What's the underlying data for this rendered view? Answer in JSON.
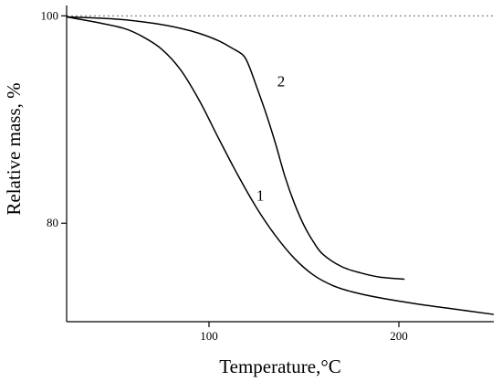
{
  "chart_data": {
    "type": "line",
    "title": "",
    "xlabel": "Temperature,°C",
    "ylabel": "Relative mass, %",
    "xlim": [
      25,
      250
    ],
    "ylim": [
      70.5,
      101
    ],
    "x_ticks": [
      100,
      200
    ],
    "x_tick_labels": [
      "100",
      "200"
    ],
    "y_ticks": [
      80,
      100
    ],
    "y_tick_labels": [
      "80",
      "100"
    ],
    "grid": false,
    "legend": "none",
    "reference_lines": [
      {
        "axis": "y",
        "value": 100,
        "style": "dotted"
      }
    ],
    "series": [
      {
        "name": "1",
        "color": "#000000",
        "x": [
          25,
          40,
          55,
          65,
          75,
          85,
          95,
          105,
          115,
          125,
          135,
          145,
          155,
          165,
          175,
          190,
          210,
          230,
          250
        ],
        "y": [
          99.9,
          99.4,
          98.8,
          98.0,
          96.8,
          94.8,
          91.8,
          88.2,
          84.7,
          81.5,
          78.8,
          76.6,
          75.0,
          74.0,
          73.4,
          72.8,
          72.2,
          71.7,
          71.2
        ]
      },
      {
        "name": "2",
        "color": "#000000",
        "x": [
          25,
          50,
          70,
          85,
          95,
          105,
          112,
          118,
          121,
          125,
          130,
          135,
          140,
          145,
          150,
          155,
          160,
          170,
          180,
          190,
          203
        ],
        "y": [
          99.9,
          99.7,
          99.3,
          98.8,
          98.3,
          97.6,
          96.9,
          96.2,
          95.2,
          93.2,
          90.6,
          87.7,
          84.5,
          81.9,
          79.8,
          78.2,
          77.0,
          75.8,
          75.2,
          74.8,
          74.6
        ]
      }
    ]
  }
}
